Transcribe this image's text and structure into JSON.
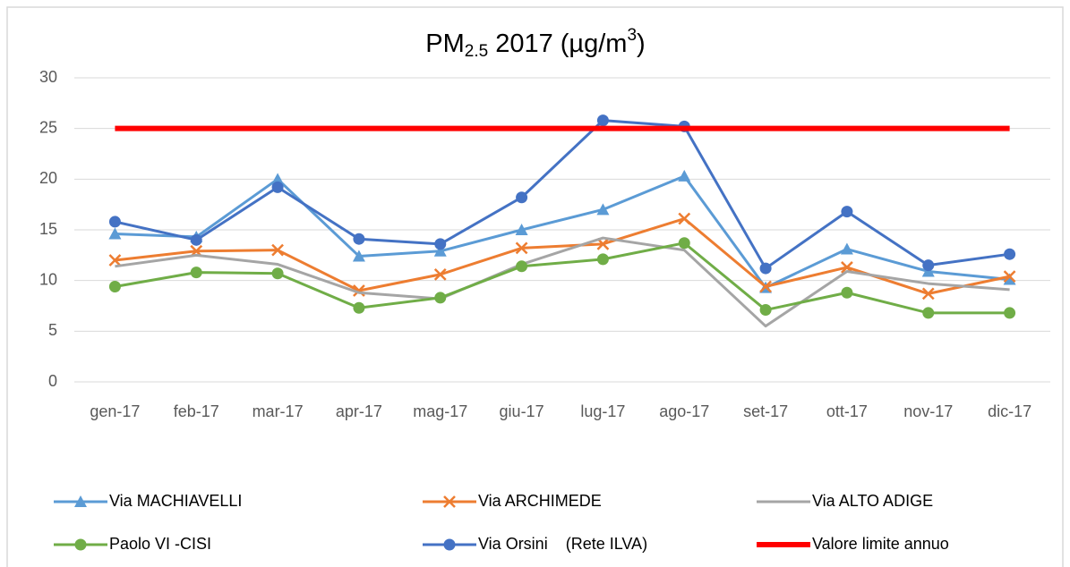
{
  "chart_data": {
    "type": "line",
    "title_parts": [
      "PM",
      "2.5",
      "2017 (µg/m",
      "3",
      ")"
    ],
    "categories": [
      "gen-17",
      "feb-17",
      "mar-17",
      "apr-17",
      "mag-17",
      "giu-17",
      "lug-17",
      "ago-17",
      "set-17",
      "ott-17",
      "nov-17",
      "dic-17"
    ],
    "series": [
      {
        "name": "Via MACHIAVELLI",
        "color": "#5b9bd5",
        "marker": "triangle",
        "linewidth": 3,
        "values": [
          14.6,
          14.3,
          20.0,
          12.4,
          12.9,
          15.0,
          17.0,
          20.3,
          9.3,
          13.1,
          10.9,
          10.1
        ]
      },
      {
        "name": "Via ARCHIMEDE",
        "color": "#ed7d31",
        "marker": "x",
        "linewidth": 3,
        "values": [
          12.0,
          12.9,
          13.0,
          9.0,
          10.6,
          13.2,
          13.6,
          16.1,
          9.4,
          11.3,
          8.7,
          10.4
        ]
      },
      {
        "name": "Via ALTO ADIGE",
        "color": "#a5a5a5",
        "marker": "none",
        "linewidth": 3,
        "values": [
          11.4,
          12.5,
          11.6,
          8.8,
          8.2,
          11.6,
          14.2,
          13.0,
          5.5,
          10.9,
          9.7,
          9.1
        ]
      },
      {
        "name": "Paolo VI -CISI",
        "color": "#70ad47",
        "marker": "circle",
        "linewidth": 3,
        "values": [
          9.4,
          10.8,
          10.7,
          7.3,
          8.3,
          11.4,
          12.1,
          13.7,
          7.1,
          8.8,
          6.8,
          6.8
        ]
      },
      {
        "name": "Via Orsini    (Rete ILVA)",
        "color": "#4472c4",
        "marker": "circle",
        "linewidth": 3,
        "values": [
          15.8,
          14.0,
          19.2,
          14.1,
          13.6,
          18.2,
          25.8,
          25.2,
          11.2,
          16.8,
          11.5,
          12.6
        ]
      },
      {
        "name": "Valore limite annuo",
        "color": "#ff0000",
        "marker": "none",
        "linewidth": 6,
        "values": [
          25,
          25,
          25,
          25,
          25,
          25,
          25,
          25,
          25,
          25,
          25,
          25
        ]
      }
    ],
    "ylim": [
      0,
      30
    ],
    "yticks": [
      0,
      5,
      10,
      15,
      20,
      25,
      30
    ],
    "grid": true
  }
}
